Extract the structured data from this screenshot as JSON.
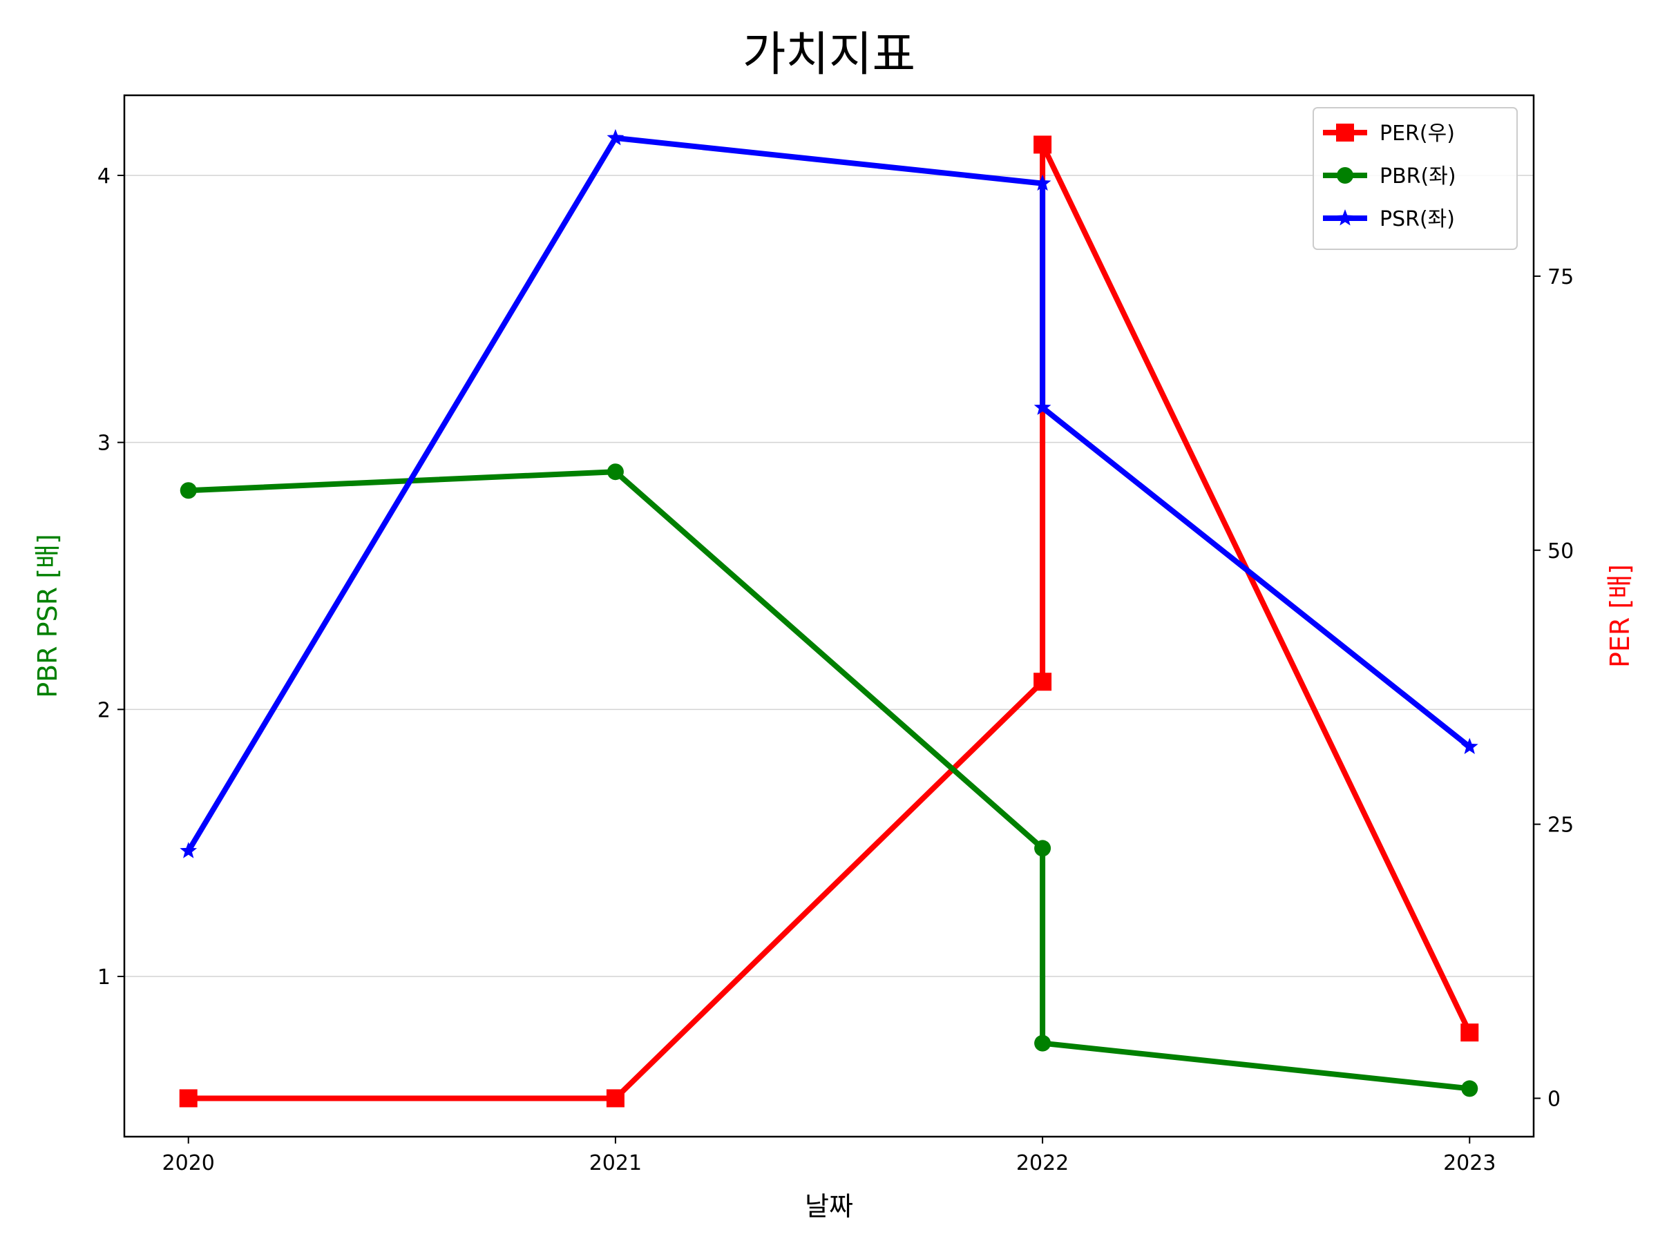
{
  "chart_data": {
    "type": "line",
    "title": "가치지표",
    "xlabel": "날짜",
    "ylabel_left": "PBR PSR [배]",
    "ylabel_right": "PER [배]",
    "x_ticks": [
      "2020",
      "2021",
      "2022",
      "2023"
    ],
    "xlim": [
      2019.85,
      2023.15
    ],
    "ylim_left": [
      0.4,
      4.3
    ],
    "ylim_right": [
      -3.5,
      91.5
    ],
    "yticks_left": [
      1,
      2,
      3,
      4
    ],
    "yticks_right": [
      0,
      25,
      50,
      75
    ],
    "grid": "horizontal (left axis)",
    "legend_position": "top-right",
    "series": [
      {
        "name": "PER(우)",
        "axis": "right",
        "color": "#ff0000",
        "marker": "square",
        "points": [
          [
            2020,
            0
          ],
          [
            2021,
            0
          ],
          [
            2022,
            38
          ],
          [
            2022,
            87
          ],
          [
            2023,
            6
          ]
        ]
      },
      {
        "name": "PBR(좌)",
        "axis": "left",
        "color": "#008000",
        "marker": "circle",
        "points": [
          [
            2020,
            2.82
          ],
          [
            2021,
            2.89
          ],
          [
            2022,
            1.48
          ],
          [
            2022,
            0.75
          ],
          [
            2023,
            0.58
          ]
        ]
      },
      {
        "name": "PSR(좌)",
        "axis": "left",
        "color": "#0000ff",
        "marker": "star",
        "points": [
          [
            2020,
            1.47
          ],
          [
            2021,
            4.14
          ],
          [
            2022,
            3.97
          ],
          [
            2022,
            3.13
          ],
          [
            2023,
            1.86
          ]
        ]
      }
    ]
  }
}
